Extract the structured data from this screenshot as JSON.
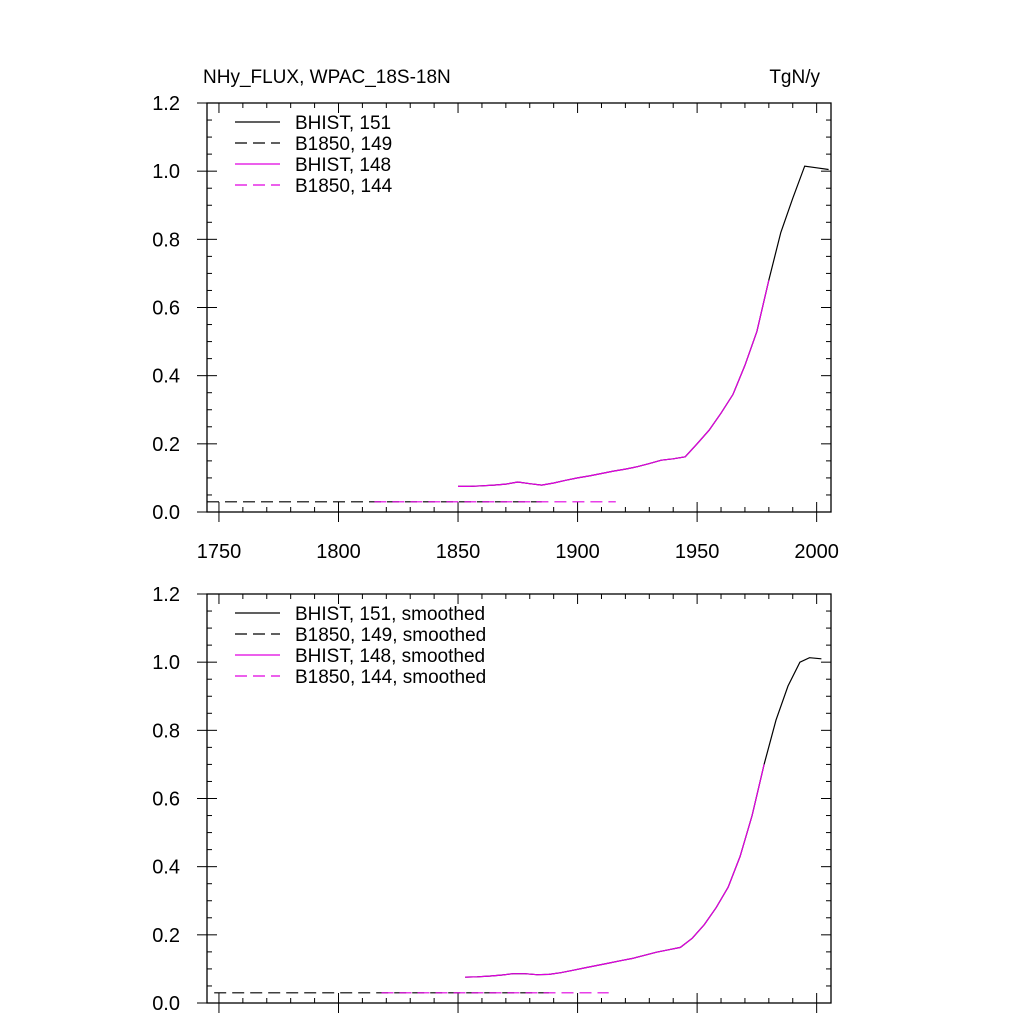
{
  "title": "NHy_FLUX, WPAC_18S-18N",
  "units": "TgN/y",
  "colors": {
    "black": "#000000",
    "magenta": "#e000e0",
    "axis": "#000000"
  },
  "chart_data": [
    {
      "type": "line",
      "panel": "top",
      "title": "NHy_FLUX, WPAC_18S-18N",
      "units": "TgN/y",
      "xlim": [
        1745,
        2006
      ],
      "ylim": [
        0.0,
        1.2
      ],
      "x_ticks": [
        1750,
        1800,
        1850,
        1900,
        1950,
        2000
      ],
      "x_tick_labels": [
        "1750",
        "1800",
        "1850",
        "1900",
        "1950",
        "2000"
      ],
      "y_ticks": [
        0.0,
        0.2,
        0.4,
        0.6,
        0.8,
        1.0,
        1.2
      ],
      "y_tick_labels": [
        "0.0",
        "0.2",
        "0.4",
        "0.6",
        "0.8",
        "1.0",
        "1.2"
      ],
      "legend_position": "top-left",
      "grid": false,
      "series": [
        {
          "name": "BHIST, 151",
          "color": "black",
          "dash": "solid",
          "x": [
            1850,
            1855,
            1860,
            1865,
            1870,
            1875,
            1880,
            1885,
            1890,
            1895,
            1900,
            1905,
            1910,
            1915,
            1920,
            1925,
            1930,
            1935,
            1940,
            1945,
            1950,
            1955,
            1960,
            1965,
            1970,
            1975,
            1980,
            1985,
            1990,
            1995,
            2000,
            2005
          ],
          "y": [
            0.075,
            0.075,
            0.077,
            0.079,
            0.082,
            0.088,
            0.083,
            0.079,
            0.085,
            0.093,
            0.1,
            0.106,
            0.113,
            0.12,
            0.126,
            0.133,
            0.142,
            0.152,
            0.156,
            0.162,
            0.2,
            0.24,
            0.29,
            0.345,
            0.43,
            0.53,
            0.68,
            0.82,
            0.92,
            1.015,
            1.01,
            1.005
          ]
        },
        {
          "name": "B1850, 149",
          "color": "black",
          "dash": "dashed",
          "x": [
            1745,
            1885
          ],
          "y": [
            0.03,
            0.03
          ]
        },
        {
          "name": "BHIST, 148",
          "color": "magenta",
          "dash": "solid",
          "x": [
            1850,
            1855,
            1860,
            1865,
            1870,
            1875,
            1880,
            1885,
            1890,
            1895,
            1900,
            1905,
            1910,
            1915,
            1920,
            1925,
            1930,
            1935,
            1940,
            1945,
            1950,
            1955,
            1960,
            1965,
            1970,
            1975,
            1980
          ],
          "y": [
            0.075,
            0.075,
            0.077,
            0.079,
            0.082,
            0.088,
            0.083,
            0.079,
            0.085,
            0.093,
            0.1,
            0.106,
            0.113,
            0.12,
            0.126,
            0.133,
            0.142,
            0.152,
            0.156,
            0.162,
            0.2,
            0.24,
            0.29,
            0.345,
            0.43,
            0.53,
            0.68
          ]
        },
        {
          "name": "B1850, 144",
          "color": "magenta",
          "dash": "dashed",
          "x": [
            1815,
            1916
          ],
          "y": [
            0.03,
            0.03
          ]
        }
      ]
    },
    {
      "type": "line",
      "panel": "bottom",
      "xlim": [
        1745,
        2006
      ],
      "ylim": [
        0.0,
        1.2
      ],
      "x_ticks": [
        1750,
        1800,
        1850,
        1900,
        1950,
        2000
      ],
      "y_ticks": [
        0.0,
        0.2,
        0.4,
        0.6,
        0.8,
        1.0,
        1.2
      ],
      "y_tick_labels": [
        "0.0",
        "0.2",
        "0.4",
        "0.6",
        "0.8",
        "1.0",
        "1.2"
      ],
      "legend_position": "top-left",
      "grid": false,
      "series": [
        {
          "name": "BHIST, 151, smoothed",
          "color": "black",
          "dash": "solid",
          "x": [
            1853,
            1858,
            1863,
            1868,
            1873,
            1878,
            1883,
            1888,
            1893,
            1898,
            1903,
            1908,
            1913,
            1918,
            1923,
            1928,
            1933,
            1938,
            1943,
            1948,
            1953,
            1958,
            1963,
            1968,
            1973,
            1978,
            1983,
            1988,
            1993,
            1997,
            2002
          ],
          "y": [
            0.076,
            0.077,
            0.079,
            0.082,
            0.086,
            0.086,
            0.083,
            0.084,
            0.089,
            0.096,
            0.103,
            0.11,
            0.117,
            0.124,
            0.131,
            0.14,
            0.149,
            0.156,
            0.163,
            0.19,
            0.23,
            0.28,
            0.34,
            0.43,
            0.55,
            0.7,
            0.83,
            0.93,
            1.0,
            1.013,
            1.01
          ]
        },
        {
          "name": "B1850, 149, smoothed",
          "color": "black",
          "dash": "dashed",
          "x": [
            1748,
            1888
          ],
          "y": [
            0.03,
            0.03
          ]
        },
        {
          "name": "BHIST, 148, smoothed",
          "color": "magenta",
          "dash": "solid",
          "x": [
            1853,
            1858,
            1863,
            1868,
            1873,
            1878,
            1883,
            1888,
            1893,
            1898,
            1903,
            1908,
            1913,
            1918,
            1923,
            1928,
            1933,
            1938,
            1943,
            1948,
            1953,
            1958,
            1963,
            1968,
            1973,
            1978
          ],
          "y": [
            0.076,
            0.077,
            0.079,
            0.082,
            0.086,
            0.086,
            0.083,
            0.084,
            0.089,
            0.096,
            0.103,
            0.11,
            0.117,
            0.124,
            0.131,
            0.14,
            0.149,
            0.156,
            0.163,
            0.19,
            0.23,
            0.28,
            0.34,
            0.43,
            0.55,
            0.7
          ]
        },
        {
          "name": "B1850, 144, smoothed",
          "color": "magenta",
          "dash": "dashed",
          "x": [
            1818,
            1913
          ],
          "y": [
            0.03,
            0.03
          ]
        }
      ]
    }
  ]
}
